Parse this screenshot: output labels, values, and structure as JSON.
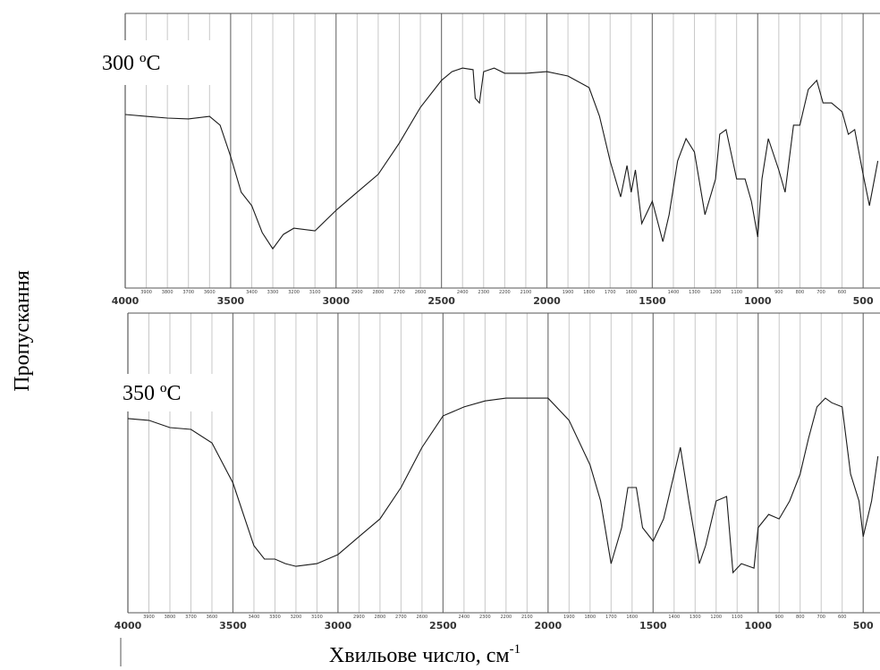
{
  "chart_data": [
    {
      "type": "line",
      "annotation": "300 ºC",
      "ylabel": "Пропускання",
      "color": "#1a1a1a",
      "grid": true,
      "xlim": [
        4000,
        420
      ],
      "ylim": [
        0,
        100
      ],
      "xticks": [
        4000,
        3500,
        3000,
        2500,
        2000,
        1500,
        1000,
        500
      ],
      "xminor": [
        3900,
        3800,
        3700,
        3600,
        3400,
        3300,
        3200,
        3100,
        2900,
        2800,
        2700,
        2600,
        2400,
        2300,
        2200,
        2100,
        1900,
        1800,
        1700,
        1600,
        1400,
        1300,
        1200,
        1100,
        900,
        800,
        700,
        600
      ],
      "x": [
        4000,
        3900,
        3800,
        3700,
        3600,
        3550,
        3500,
        3450,
        3400,
        3350,
        3300,
        3250,
        3200,
        3100,
        3000,
        2900,
        2800,
        2700,
        2600,
        2500,
        2450,
        2400,
        2350,
        2340,
        2320,
        2300,
        2250,
        2200,
        2100,
        2000,
        1900,
        1800,
        1750,
        1700,
        1650,
        1620,
        1600,
        1580,
        1550,
        1500,
        1450,
        1420,
        1380,
        1340,
        1300,
        1250,
        1200,
        1180,
        1150,
        1100,
        1060,
        1030,
        1000,
        980,
        950,
        900,
        870,
        830,
        800,
        760,
        720,
        690,
        650,
        600,
        570,
        540,
        500,
        470,
        430
      ],
      "values": [
        63.2,
        62.5,
        61.9,
        61.6,
        62.5,
        59.3,
        47.9,
        34.9,
        30.0,
        20.2,
        14.3,
        19.5,
        21.8,
        20.8,
        28.3,
        34.9,
        41.4,
        52.8,
        65.8,
        75.6,
        78.8,
        80.1,
        79.5,
        69.1,
        67.4,
        78.8,
        80.1,
        78.2,
        78.2,
        78.8,
        77.2,
        73.0,
        62.5,
        46.3,
        33.2,
        44.6,
        34.9,
        43.0,
        23.5,
        31.6,
        16.9,
        26.7,
        46.3,
        54.4,
        49.5,
        26.7,
        39.7,
        56.0,
        57.7,
        39.7,
        39.7,
        31.6,
        18.6,
        39.7,
        54.4,
        43.0,
        34.9,
        59.3,
        59.3,
        72.3,
        75.6,
        67.4,
        67.4,
        64.2,
        56.0,
        57.7,
        41.4,
        30.0,
        46.3
      ]
    },
    {
      "type": "line",
      "annotation": "350 ºC",
      "xlabel": "Хвильове число, см",
      "xlabel_sup": "-1",
      "color": "#1a1a1a",
      "grid": true,
      "xlim": [
        4000,
        420
      ],
      "ylim": [
        0,
        100
      ],
      "xticks": [
        4000,
        3500,
        3000,
        2500,
        2000,
        1500,
        1000,
        500
      ],
      "xminor": [
        3900,
        3800,
        3700,
        3600,
        3400,
        3300,
        3200,
        3100,
        2900,
        2800,
        2700,
        2600,
        2400,
        2300,
        2200,
        2100,
        1900,
        1800,
        1700,
        1600,
        1400,
        1300,
        1200,
        1100,
        900,
        800,
        700,
        600
      ],
      "x": [
        4000,
        3900,
        3800,
        3700,
        3600,
        3500,
        3450,
        3400,
        3350,
        3300,
        3250,
        3200,
        3100,
        3000,
        2900,
        2800,
        2700,
        2600,
        2500,
        2400,
        2300,
        2200,
        2100,
        2000,
        1900,
        1800,
        1750,
        1700,
        1650,
        1620,
        1580,
        1550,
        1500,
        1450,
        1400,
        1370,
        1330,
        1280,
        1250,
        1200,
        1150,
        1120,
        1080,
        1020,
        1000,
        950,
        900,
        850,
        800,
        760,
        720,
        680,
        650,
        600,
        560,
        520,
        500,
        460,
        430
      ],
      "values": [
        64.8,
        64.2,
        61.8,
        61.2,
        56.7,
        43.3,
        32.8,
        22.4,
        17.9,
        17.9,
        16.4,
        15.5,
        16.4,
        19.4,
        25.4,
        31.3,
        41.8,
        55.2,
        65.7,
        68.7,
        70.7,
        71.6,
        71.6,
        71.6,
        64.2,
        49.3,
        37.3,
        16.4,
        28.4,
        41.8,
        41.8,
        28.4,
        23.9,
        31.3,
        46.3,
        55.2,
        37.3,
        16.4,
        22.4,
        37.3,
        38.8,
        13.4,
        16.4,
        14.9,
        28.4,
        32.8,
        31.3,
        37.3,
        46.3,
        58.2,
        68.7,
        71.6,
        70.1,
        68.7,
        46.3,
        37.3,
        25.4,
        37.3,
        52.2
      ]
    }
  ]
}
